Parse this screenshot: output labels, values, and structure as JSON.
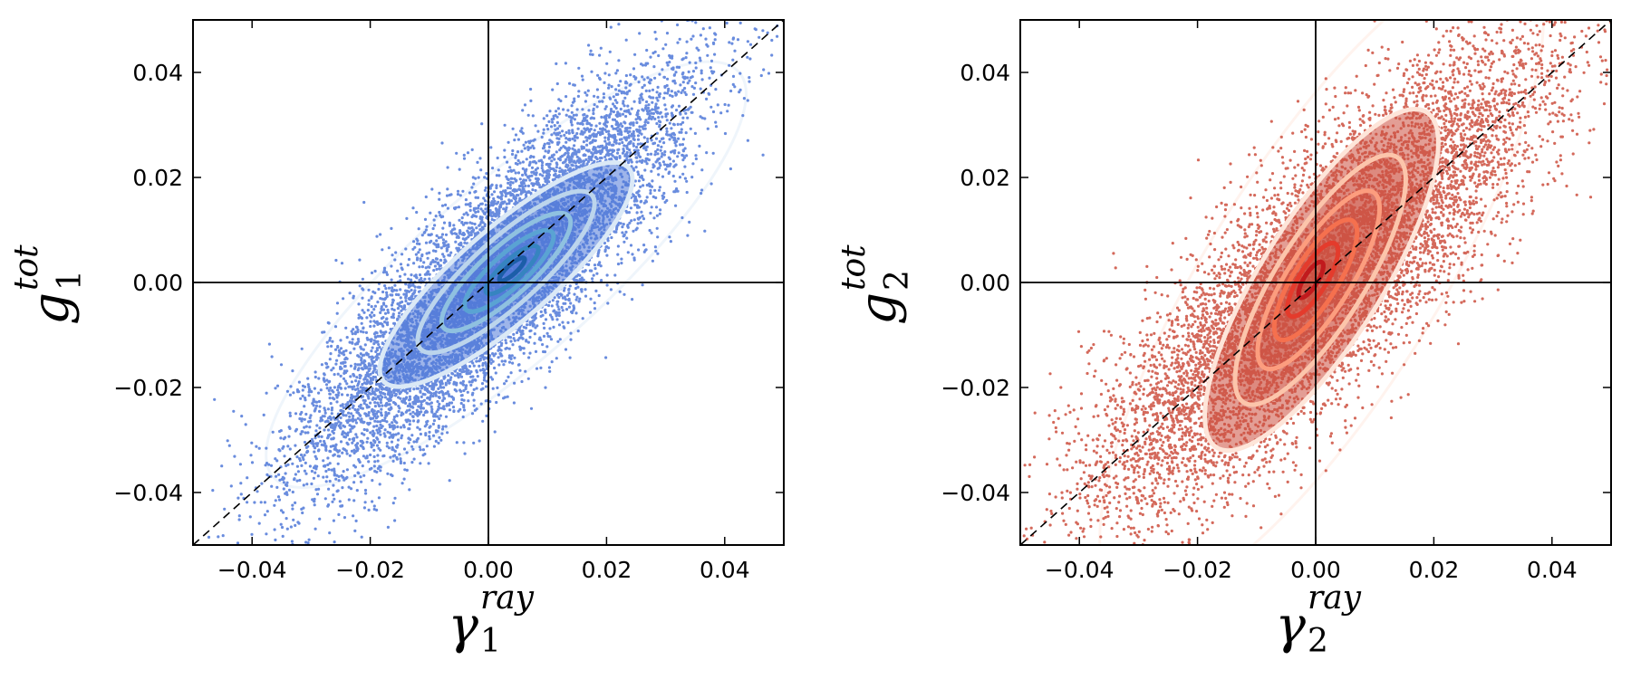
{
  "chart_data": [
    {
      "type": "scatter",
      "panel": "left",
      "xlabel": {
        "symbol": "γ",
        "subscript": "1",
        "superscript": "ray"
      },
      "ylabel": {
        "symbol": "g",
        "subscript": "1",
        "superscript": "tot"
      },
      "xlim": [
        -0.05,
        0.05
      ],
      "ylim": [
        -0.05,
        0.05
      ],
      "xticks": [
        -0.04,
        -0.02,
        0.0,
        0.02,
        0.04
      ],
      "yticks": [
        -0.04,
        -0.02,
        0.0,
        0.02,
        0.04
      ],
      "xtick_labels": [
        "−0.04",
        "−0.02",
        "0.00",
        "0.02",
        "0.04"
      ],
      "ytick_labels": [
        "−0.04",
        "−0.02",
        "0.00",
        "0.02",
        "0.04"
      ],
      "reference_lines": {
        "x_zero": true,
        "y_zero": true,
        "diagonal_one_to_one": true
      },
      "color": "#4f78d8",
      "contour_colors": [
        "#dbe9f6",
        "#bcd5ec",
        "#8fc1e0",
        "#5aa3d3",
        "#3684c0",
        "#1c5ea8",
        "#0d3f86"
      ],
      "distribution": {
        "center": [
          0.001,
          0.001
        ],
        "sd_x": 0.016,
        "slope": 1.0,
        "sd_resid": 0.0095
      },
      "contours": [
        {
          "level": 1,
          "center": [
            0.003,
            0.0015
          ],
          "semi_major": 0.0275,
          "semi_minor": 0.0088,
          "angle_deg": 41
        },
        {
          "level": 2,
          "center": [
            0.003,
            0.002
          ],
          "semi_major": 0.0195,
          "semi_minor": 0.0063,
          "angle_deg": 42
        },
        {
          "level": 3,
          "center": [
            0.003,
            0.002
          ],
          "semi_major": 0.0142,
          "semi_minor": 0.0047,
          "angle_deg": 42
        },
        {
          "level": 4,
          "center": [
            0.0035,
            0.0022
          ],
          "semi_major": 0.0098,
          "semi_minor": 0.0032,
          "angle_deg": 42
        },
        {
          "level": 5,
          "center": [
            0.004,
            0.0024
          ],
          "semi_major": 0.0058,
          "semi_minor": 0.0019,
          "angle_deg": 42
        },
        {
          "level": 6,
          "center": [
            0.004,
            0.0025
          ],
          "semi_major": 0.0028,
          "semi_minor": 0.0009,
          "angle_deg": 42
        }
      ]
    },
    {
      "type": "scatter",
      "panel": "right",
      "xlabel": {
        "symbol": "γ",
        "subscript": "2",
        "superscript": "ray"
      },
      "ylabel": {
        "symbol": "g",
        "subscript": "2",
        "superscript": "tot"
      },
      "xlim": [
        -0.05,
        0.05
      ],
      "ylim": [
        -0.05,
        0.05
      ],
      "xticks": [
        -0.04,
        -0.02,
        0.0,
        0.02,
        0.04
      ],
      "yticks": [
        -0.04,
        -0.02,
        0.0,
        0.02,
        0.04
      ],
      "xtick_labels": [
        "−0.04",
        "−0.02",
        "0.00",
        "0.02",
        "0.04"
      ],
      "ytick_labels": [
        "−0.04",
        "−0.02",
        "0.00",
        "0.02",
        "0.04"
      ],
      "reference_lines": {
        "x_zero": true,
        "y_zero": true,
        "diagonal_one_to_one": true
      },
      "color": "#cc4f3e",
      "contour_colors": [
        "#fee5d9",
        "#fcc5ab",
        "#fc9d7e",
        "#f5704e",
        "#e43b2c",
        "#c11a1d",
        "#8f0a12"
      ],
      "distribution": {
        "center": [
          0.001,
          0.001
        ],
        "sd_x": 0.019,
        "slope": 1.0,
        "sd_resid": 0.012
      },
      "contours": [
        {
          "level": 1,
          "center": [
            0.001,
            0.0005
          ],
          "semi_major": 0.0335,
          "semi_minor": 0.0115,
          "angle_deg": 58
        },
        {
          "level": 2,
          "center": [
            0.0008,
            0.0005
          ],
          "semi_major": 0.0245,
          "semi_minor": 0.0084,
          "angle_deg": 58
        },
        {
          "level": 3,
          "center": [
            0.0005,
            0.0005
          ],
          "semi_major": 0.0175,
          "semi_minor": 0.006,
          "angle_deg": 58
        },
        {
          "level": 4,
          "center": [
            0.0,
            0.0005
          ],
          "semi_major": 0.0118,
          "semi_minor": 0.0042,
          "angle_deg": 58
        },
        {
          "level": 5,
          "center": [
            -0.0005,
            0.0005
          ],
          "semi_major": 0.0072,
          "semi_minor": 0.0026,
          "angle_deg": 58
        },
        {
          "level": 6,
          "center": [
            -0.0008,
            0.0005
          ],
          "semi_major": 0.0035,
          "semi_minor": 0.0013,
          "angle_deg": 58
        }
      ]
    }
  ]
}
